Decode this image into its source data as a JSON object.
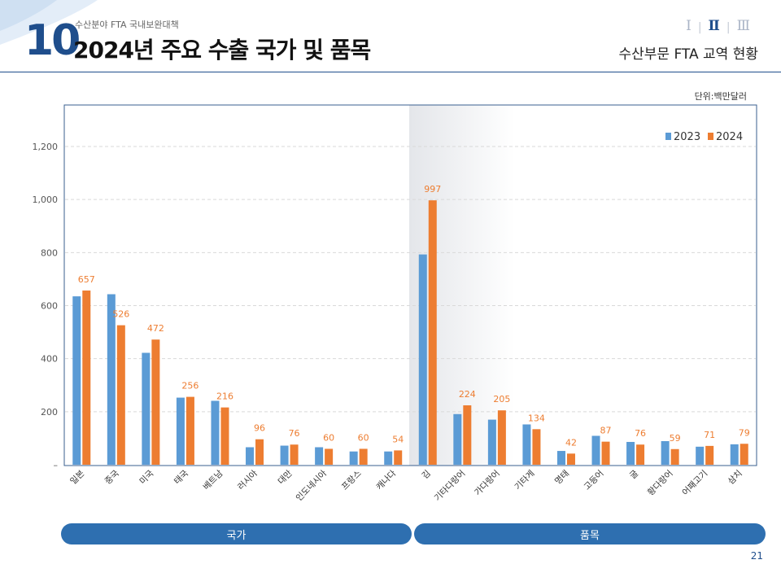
{
  "header": {
    "section_number": "10",
    "subtitle": "수산분야 FTA 국내보완대책",
    "title": "2024년 주요 수출 국가 및 품목",
    "roman_tabs": [
      "Ⅰ",
      "Ⅱ",
      "Ⅲ"
    ],
    "active_tab": 1,
    "right_title": "수산부문 FTA 교역 현황"
  },
  "unit_label": "단위:백만달러",
  "groups": [
    {
      "label": "국가"
    },
    {
      "label": "품목"
    }
  ],
  "page_number": "21",
  "colors": {
    "series_2023": "#5b9bd5",
    "series_2024": "#ed7d31",
    "accent": "#1f4e8c",
    "group_bar": "#2e6fb0"
  },
  "chart_data": {
    "type": "bar",
    "title": "",
    "xlabel": "",
    "ylabel": "",
    "ylim": [
      0,
      1300
    ],
    "yticks": [
      0,
      200,
      400,
      600,
      800,
      1000,
      1200
    ],
    "ytick_labels": [
      "–",
      "200",
      "400",
      "600",
      "800",
      "1,000",
      "1,200"
    ],
    "grid": true,
    "legend_position": "top-right",
    "categories": [
      "일본",
      "중국",
      "미국",
      "태국",
      "베트남",
      "러시아",
      "대만",
      "인도네시아",
      "프랑스",
      "캐나다",
      "김",
      "기타다랑어",
      "가다랑어",
      "기타게",
      "명태",
      "고등어",
      "굴",
      "황다랑어",
      "어패고기",
      "삼치"
    ],
    "series": [
      {
        "name": "2023",
        "values": [
          635,
          643,
          422,
          253,
          241,
          66,
          72,
          66,
          50,
          50,
          793,
          191,
          170,
          152,
          52,
          109,
          86,
          89,
          68,
          77
        ]
      },
      {
        "name": "2024",
        "values": [
          657,
          526,
          472,
          256,
          216,
          96,
          76,
          60,
          60,
          54,
          997,
          224,
          205,
          134,
          42,
          87,
          76,
          59,
          71,
          79
        ]
      }
    ],
    "data_labels": [
      "657",
      "526",
      "472",
      "256",
      "216",
      "96",
      "76",
      "60",
      "60",
      "54",
      "997",
      "224",
      "205",
      "134",
      "42",
      "87",
      "76",
      "59",
      "71",
      "79"
    ]
  }
}
